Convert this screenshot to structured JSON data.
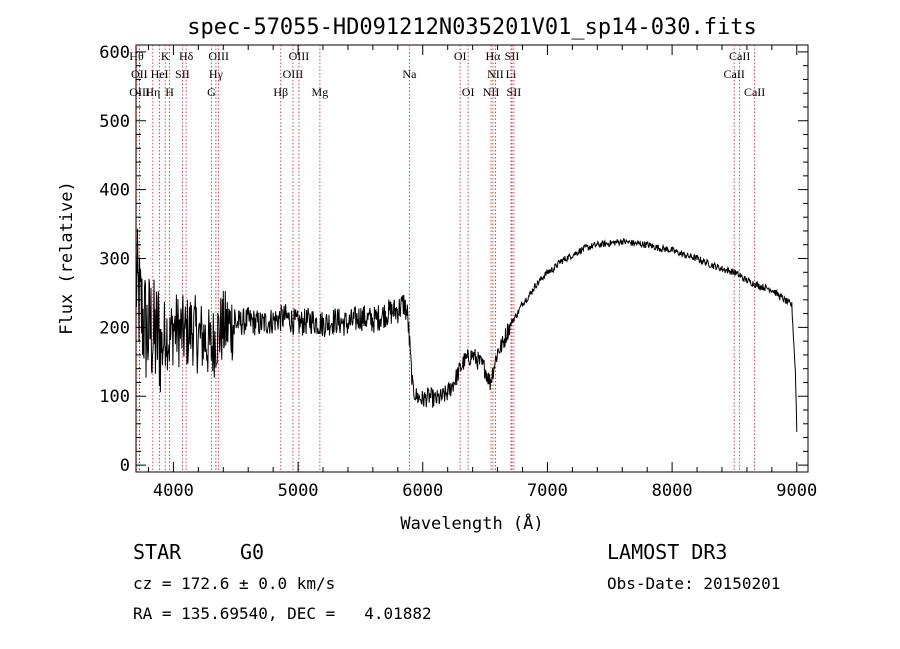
{
  "chart_data": {
    "type": "line",
    "title": "spec-57055-HD091212N035201V01_sp14-030.fits",
    "xlabel": "Wavelength (Å)",
    "ylabel": "Flux (relative)",
    "xlim": [
      3700,
      9090
    ],
    "ylim": [
      -10,
      610
    ],
    "xticks": [
      4000,
      5000,
      6000,
      7000,
      8000,
      9000
    ],
    "yticks": [
      0,
      100,
      200,
      300,
      400,
      500,
      600
    ],
    "series": [
      {
        "name": "flux",
        "x": [
          3700,
          3730,
          3760,
          3790,
          3820,
          3850,
          3880,
          3910,
          3940,
          3970,
          4000,
          4050,
          4100,
          4150,
          4200,
          4250,
          4300,
          4350,
          4400,
          4500,
          4600,
          4700,
          4800,
          4900,
          5000,
          5100,
          5200,
          5300,
          5400,
          5500,
          5600,
          5700,
          5800,
          5850,
          5880,
          5900,
          5920,
          5950,
          6000,
          6050,
          6100,
          6150,
          6200,
          6250,
          6300,
          6330,
          6360,
          6400,
          6450,
          6500,
          6540,
          6560,
          6580,
          6600,
          6640,
          6680,
          6720,
          6760,
          6800,
          6850,
          6900,
          6950,
          7000,
          7050,
          7100,
          7150,
          7200,
          7300,
          7400,
          7500,
          7600,
          7700,
          7800,
          7900,
          8000,
          8100,
          8200,
          8300,
          8400,
          8500,
          8600,
          8700,
          8800,
          8900,
          8960,
          8990,
          9000
        ],
        "values": [
          270,
          230,
          210,
          190,
          200,
          180,
          190,
          170,
          200,
          180,
          200,
          195,
          190,
          200,
          185,
          185,
          170,
          190,
          200,
          205,
          210,
          205,
          210,
          215,
          205,
          210,
          205,
          210,
          205,
          215,
          210,
          220,
          225,
          235,
          215,
          160,
          110,
          100,
          95,
          100,
          95,
          98,
          105,
          120,
          140,
          150,
          155,
          160,
          150,
          140,
          120,
          135,
          150,
          165,
          175,
          195,
          210,
          220,
          235,
          245,
          260,
          270,
          280,
          285,
          295,
          300,
          305,
          315,
          320,
          322,
          325,
          322,
          320,
          315,
          312,
          305,
          300,
          292,
          285,
          280,
          268,
          260,
          255,
          240,
          232,
          130,
          50
        ]
      }
    ],
    "lines": [
      {
        "name": "Hθ",
        "wave": 3704,
        "row": 0
      },
      {
        "name": "OII",
        "wave": 3727,
        "row": 1
      },
      {
        "name": "OIII",
        "wave": 3729,
        "row": 2
      },
      {
        "name": "Hη",
        "wave": 3835,
        "row": 2
      },
      {
        "name": "HeI",
        "wave": 3889,
        "row": 1
      },
      {
        "name": "K",
        "wave": 3934,
        "row": 0
      },
      {
        "name": "H",
        "wave": 3969,
        "row": 2
      },
      {
        "name": "SII",
        "wave": 4072,
        "row": 1
      },
      {
        "name": "Hδ",
        "wave": 4102,
        "row": 0
      },
      {
        "name": "G",
        "wave": 4305,
        "row": 2
      },
      {
        "name": "Hγ",
        "wave": 4341,
        "row": 1
      },
      {
        "name": "OIII",
        "wave": 4363,
        "row": 0
      },
      {
        "name": "Hβ",
        "wave": 4861,
        "row": 2
      },
      {
        "name": "OIII",
        "wave": 4959,
        "row": 1
      },
      {
        "name": "OIII",
        "wave": 5007,
        "row": 0
      },
      {
        "name": "Mg",
        "wave": 5175,
        "row": 2
      },
      {
        "name": "Na",
        "wave": 5893,
        "row": 1
      },
      {
        "name": "OI",
        "wave": 6300,
        "row": 0
      },
      {
        "name": "OI",
        "wave": 6364,
        "row": 2
      },
      {
        "name": "NII",
        "wave": 6548,
        "row": 2
      },
      {
        "name": "Hα",
        "wave": 6563,
        "row": 0
      },
      {
        "name": "NII",
        "wave": 6583,
        "row": 1
      },
      {
        "name": "Li",
        "wave": 6708,
        "row": 1
      },
      {
        "name": "SII",
        "wave": 6716,
        "row": 0
      },
      {
        "name": "SII",
        "wave": 6731,
        "row": 2
      },
      {
        "name": "CaII",
        "wave": 8498,
        "row": 1
      },
      {
        "name": "CaII",
        "wave": 8542,
        "row": 0
      },
      {
        "name": "CaII",
        "wave": 8662,
        "row": 2
      }
    ]
  },
  "info": {
    "class_label": "STAR",
    "subclass_label": "G0",
    "survey_label": "LAMOST DR3",
    "cz_text": "cz = 172.6 ± 0.0 km/s",
    "obs_date_text": "Obs-Date: 20150201",
    "coords_text": "RA = 135.69540, DEC =   4.01882"
  },
  "colors": {
    "line_marker": "#cc2222",
    "spectrum": "#000000",
    "axes": "#000000"
  }
}
